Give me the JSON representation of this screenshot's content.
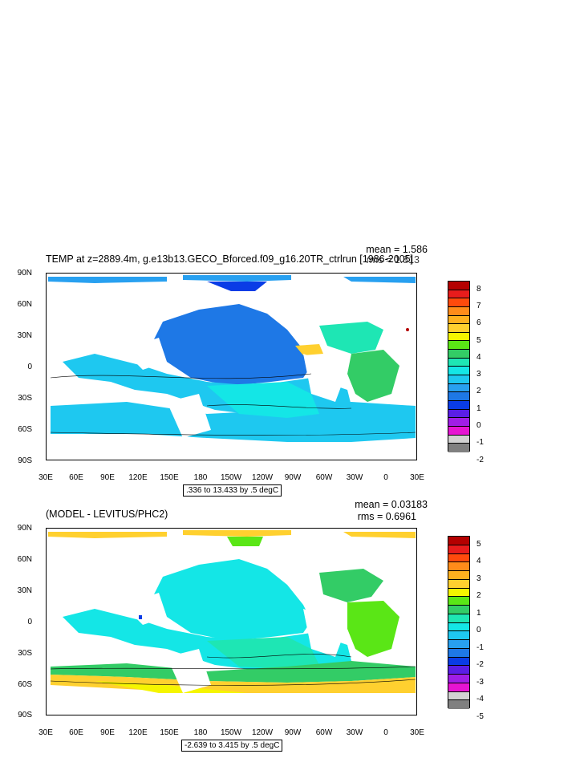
{
  "panel1": {
    "title": "TEMP at z=2889.4m, g.e13b13.GECO_Bforced.f09_g16.20TR_ctrlrun [1986-2005]",
    "mean": "mean = 1.586",
    "rms": "rms = 1.813",
    "info": ".336 to 13.433 by .5 degC",
    "colorbar_labels": [
      "8",
      "7",
      "6",
      "5",
      "4",
      "3",
      "2",
      "1",
      "0",
      "-1",
      "-2"
    ],
    "colorbar_colors": [
      "#b40000",
      "#e81c1c",
      "#ff4a0c",
      "#ff8c1a",
      "#ffb11f",
      "#ffd02f",
      "#f5f500",
      "#5ae616",
      "#33cc66",
      "#1ee6b4",
      "#14e6e6",
      "#1ec8f0",
      "#28a0f0",
      "#1e78e6",
      "#0a3ce6",
      "#5a1ee6",
      "#a01ee6",
      "#e614d2",
      "#d2d2d2",
      "#808080"
    ]
  },
  "panel2": {
    "title": "(MODEL - LEVITUS/PHC2)",
    "mean": "mean = 0.03183",
    "rms": "rms = 0.6961",
    "info": "-2.639 to 3.415 by .5 degC",
    "colorbar_labels": [
      "5",
      "4",
      "3",
      "2",
      "1",
      "0",
      "-1",
      "-2",
      "-3",
      "-4",
      "-5"
    ],
    "colorbar_colors": [
      "#b40000",
      "#e81c1c",
      "#ff4a0c",
      "#ff8c1a",
      "#ffb11f",
      "#ffd02f",
      "#f5f500",
      "#5ae616",
      "#33cc66",
      "#1ee6b4",
      "#14e6e6",
      "#1ec8f0",
      "#28a0f0",
      "#1e78e6",
      "#0a3ce6",
      "#5a1ee6",
      "#a01ee6",
      "#e614d2",
      "#d2d2d2",
      "#808080"
    ]
  },
  "axes": {
    "lat_labels": [
      "90N",
      "60N",
      "30N",
      "0",
      "30S",
      "60S",
      "90S"
    ],
    "lon_labels": [
      "30E",
      "60E",
      "90E",
      "120E",
      "150E",
      "180",
      "150W",
      "120W",
      "90W",
      "60W",
      "30W",
      "0",
      "30E"
    ]
  }
}
